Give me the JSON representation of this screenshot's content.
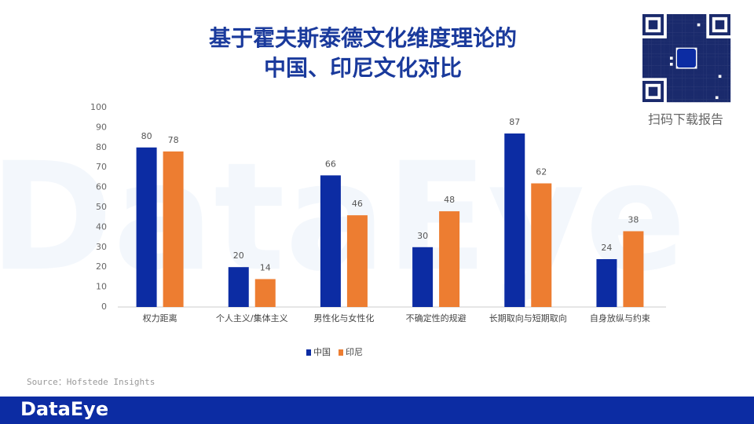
{
  "chart_data": {
    "type": "bar",
    "title": [
      "基于霍夫斯泰德文化维度理论的",
      "中国、印尼文化对比"
    ],
    "categories": [
      "权力距离",
      "个人主义/集体主义",
      "男性化与女性化",
      "不确定性的规避",
      "长期取向与短期取向",
      "自身放纵与约束"
    ],
    "series": [
      {
        "name": "中国",
        "color": "#0c2ca3",
        "values": [
          80,
          20,
          66,
          30,
          87,
          24
        ]
      },
      {
        "name": "印尼",
        "color": "#ed7d31",
        "values": [
          78,
          14,
          46,
          48,
          62,
          38
        ]
      }
    ],
    "ylim": [
      0,
      100
    ],
    "yticks": [
      0,
      10,
      20,
      30,
      40,
      50,
      60,
      70,
      80,
      90,
      100
    ],
    "grid": false,
    "legend": "bottom",
    "source": "Source：Hofstede Insights"
  },
  "qr_caption": "扫码下载报告",
  "brand": "DataEye"
}
